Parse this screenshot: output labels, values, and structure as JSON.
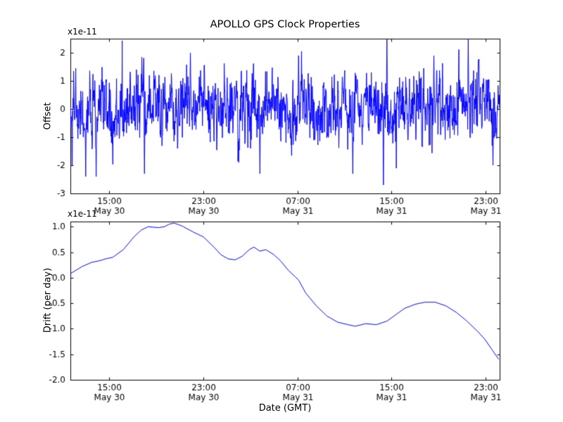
{
  "figure": {
    "title": "APOLLO GPS Clock Properties",
    "xlabel": "Date (GMT)",
    "background_color": "#ffffff",
    "axes_color": "#000000",
    "line_color": "#0000ff"
  },
  "chart_data": [
    {
      "type": "line",
      "title": "APOLLO GPS Clock Properties",
      "ylabel": "Offset",
      "y_exponent_label": "x1e-11",
      "line_color": "#0000ff",
      "ylim": [
        -3.0,
        2.5
      ],
      "yticks": [
        2,
        1,
        0,
        -1,
        -2,
        -3
      ],
      "ytick_labels": [
        "2",
        "1",
        "0",
        "-1",
        "-2",
        "-3"
      ],
      "xlim": [
        0,
        36.48
      ],
      "xticks": [
        3.3,
        11.3,
        19.3,
        27.3,
        35.3
      ],
      "xtick_labels": [
        [
          "15:00",
          "May 30"
        ],
        [
          "23:00",
          "May 30"
        ],
        [
          "07:00",
          "May 31"
        ],
        [
          "15:00",
          "May 31"
        ],
        [
          "23:00",
          "May 31"
        ]
      ],
      "grid": false,
      "series_kind": "noise",
      "noise": {
        "seed": 42,
        "n": 1600,
        "ar": 0.45,
        "std": 0.55,
        "heavy_tail_prob": 0.02,
        "heavy_tail_scale": 2.3,
        "clip_low": -2.85,
        "clip_high": 2.5
      },
      "spikes": [
        {
          "t": 1.3,
          "v": -2.4
        },
        {
          "t": 2.2,
          "v": -2.4
        },
        {
          "t": 6.3,
          "v": -2.3
        },
        {
          "t": 10.2,
          "v": 2.0
        },
        {
          "t": 14.3,
          "v": -1.9
        },
        {
          "t": 16.1,
          "v": -2.3
        },
        {
          "t": 19.4,
          "v": 1.9
        },
        {
          "t": 24.0,
          "v": -2.3
        },
        {
          "t": 26.6,
          "v": -2.7
        },
        {
          "t": 26.9,
          "v": 2.5
        },
        {
          "t": 30.9,
          "v": 1.9
        },
        {
          "t": 33.8,
          "v": 2.5
        },
        {
          "t": 35.9,
          "v": -2.0
        }
      ]
    },
    {
      "type": "line",
      "ylabel": "Drift (per day)",
      "xlabel": "Date (GMT)",
      "y_exponent_label": "x1e-11",
      "line_color": "#0000ff",
      "ylim": [
        -2.0,
        1.1
      ],
      "yticks": [
        1.0,
        0.5,
        0.0,
        -0.5,
        -1.0,
        -1.5,
        -2.0
      ],
      "ytick_labels": [
        "1.0",
        "0.5",
        "0.0",
        "-0.5",
        "-1.0",
        "-1.5",
        "-2.0"
      ],
      "xlim": [
        0,
        36.48
      ],
      "xticks": [
        3.3,
        11.3,
        19.3,
        27.3,
        35.3
      ],
      "xtick_labels": [
        [
          "15:00",
          "May 30"
        ],
        [
          "23:00",
          "May 30"
        ],
        [
          "07:00",
          "May 31"
        ],
        [
          "15:00",
          "May 31"
        ],
        [
          "23:00",
          "May 31"
        ]
      ],
      "grid": false,
      "series_kind": "points",
      "points": {
        "x": [
          0,
          1,
          1.8,
          2.6,
          3.0,
          3.6,
          4.5,
          5.4,
          6.0,
          6.6,
          7.5,
          8.0,
          8.4,
          8.8,
          9.2,
          9.6,
          10.4,
          11.3,
          12.2,
          12.8,
          13.4,
          14.0,
          14.6,
          15.2,
          15.6,
          16.1,
          16.6,
          17.3,
          17.9,
          18.5,
          19.1,
          19.4,
          20.0,
          20.9,
          21.8,
          22.7,
          23.6,
          24.2,
          25.1,
          26.0,
          26.9,
          27.5,
          28.4,
          29.3,
          30.1,
          31.0,
          31.9,
          32.8,
          33.7,
          34.6,
          35.2,
          35.8,
          36.4
        ],
        "y": [
          0.08,
          0.22,
          0.3,
          0.34,
          0.37,
          0.4,
          0.55,
          0.8,
          0.93,
          1.0,
          0.98,
          1.0,
          1.05,
          1.07,
          1.04,
          1.0,
          0.9,
          0.8,
          0.6,
          0.45,
          0.37,
          0.35,
          0.42,
          0.55,
          0.6,
          0.52,
          0.55,
          0.45,
          0.32,
          0.15,
          0.02,
          -0.05,
          -0.3,
          -0.55,
          -0.75,
          -0.87,
          -0.92,
          -0.95,
          -0.9,
          -0.92,
          -0.85,
          -0.75,
          -0.6,
          -0.52,
          -0.48,
          -0.48,
          -0.55,
          -0.68,
          -0.85,
          -1.05,
          -1.2,
          -1.4,
          -1.6
        ]
      }
    }
  ]
}
